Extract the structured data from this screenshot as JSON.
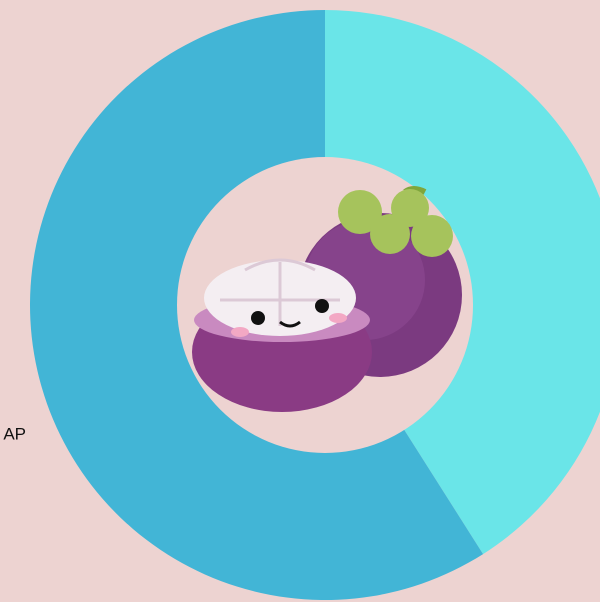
{
  "chart_data": {
    "type": "donut",
    "categories": [
      null,
      "AP"
    ],
    "values": [
      41,
      59
    ],
    "colors": [
      "#6ae5e8",
      "#42b5d6"
    ]
  }
}
